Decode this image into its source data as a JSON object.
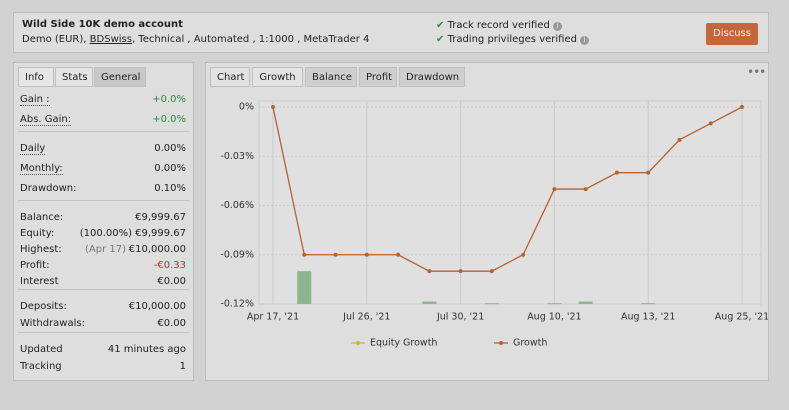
{
  "header": {
    "title": "Wild Side 10K demo account",
    "details": [
      "Demo (EUR),",
      "BDSwiss",
      ", Technical , Automated , 1:1000 , MetaTrader 4"
    ],
    "verified": [
      "Track record verified",
      "Trading privileges verified"
    ],
    "button": "Discuss"
  },
  "stats": {
    "tabs": [
      "Info",
      "Stats",
      "General"
    ],
    "groups": [
      [
        {
          "label": "Gain :",
          "value": "+0.0%",
          "tone": "green",
          "dotted": true
        },
        {
          "label": "Abs. Gain:",
          "value": "+0.0%",
          "tone": "green",
          "dotted": true
        }
      ],
      [
        {
          "label": "Daily",
          "value": "0.00%",
          "dotted": true
        },
        {
          "label": "Monthly:",
          "value": "0.00%",
          "dotted": true
        },
        {
          "label": "Drawdown:",
          "value": "0.10%"
        }
      ],
      [
        {
          "label": "Balance:",
          "value": "€9,999.67"
        },
        {
          "label": "Equity:",
          "note": "(100.00%)",
          "value": "€9,999.67"
        },
        {
          "label": "Highest:",
          "note": "(Apr 17)",
          "value": "€10,000.00"
        },
        {
          "label": "Profit:",
          "value": "-€0.33",
          "tone": "red"
        },
        {
          "label": "Interest",
          "value": "€0.00"
        }
      ],
      [
        {
          "label": "Deposits:",
          "value": "€10,000.00"
        },
        {
          "label": "Withdrawals:",
          "value": "€0.00"
        }
      ],
      [
        {
          "label": "Updated",
          "value": "41 minutes ago"
        },
        {
          "label": "Tracking",
          "value": "1"
        }
      ]
    ]
  },
  "chart_tabs": [
    "Chart",
    "Growth",
    "Balance",
    "Profit",
    "Drawdown"
  ],
  "chart": {
    "type": "line",
    "categories": [
      "Apr 17, '21",
      null,
      null,
      "Jul 26, '21",
      null,
      null,
      "Jul 30, '21",
      null,
      null,
      "Aug 10, '21",
      null,
      null,
      "Aug 13, '21",
      null,
      null,
      "Aug 25, '21"
    ],
    "series": [
      {
        "name": "Equity Growth",
        "type": "bar",
        "color": "#8fb58f",
        "marker_color": "#c9b43c",
        "values": [
          null,
          -0.1,
          null,
          null,
          null,
          -0.1185,
          null,
          -0.1195,
          null,
          -0.1195,
          -0.1185,
          null,
          -0.1195,
          null,
          null,
          null
        ]
      },
      {
        "name": "Growth",
        "type": "line",
        "color": "#b8622f",
        "values": [
          0,
          -0.09,
          -0.09,
          -0.09,
          -0.09,
          -0.1,
          -0.1,
          -0.1,
          -0.09,
          -0.05,
          -0.05,
          -0.04,
          -0.04,
          -0.02,
          -0.01,
          0
        ]
      }
    ],
    "ylim": [
      -0.12,
      0
    ],
    "yticks": [
      {
        "value": 0,
        "label": "0%"
      },
      {
        "value": -0.03,
        "label": "-0.03%"
      },
      {
        "value": -0.06,
        "label": "-0.06%"
      },
      {
        "value": -0.09,
        "label": "-0.09%"
      },
      {
        "value": -0.12,
        "label": "-0.12%"
      }
    ],
    "grid": true
  }
}
